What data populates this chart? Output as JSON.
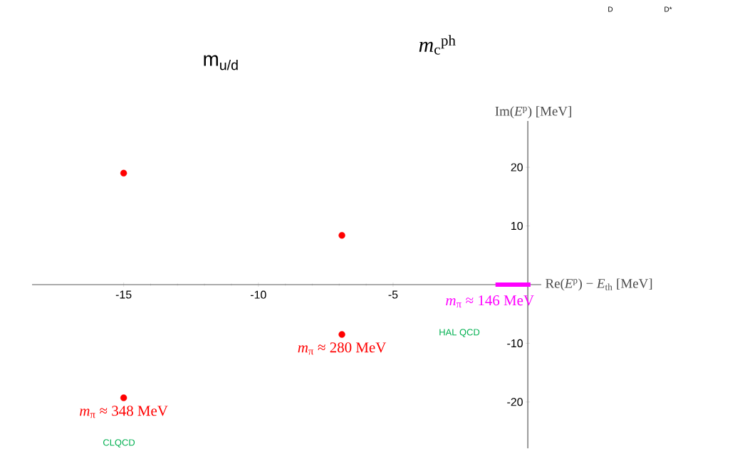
{
  "chart_data": {
    "type": "scatter",
    "xlabel": "Re(*E*$^{p}$) − *E*$_{th}$ [MeV]",
    "ylabel": "Im(*E*$^{p}$) [MeV]",
    "xlim": [
      -18.4,
      0.5
    ],
    "ylim": [
      -27.9,
      27.9
    ],
    "xticks": [
      -15,
      -10,
      -5
    ],
    "yticks": [
      -20,
      -10,
      10,
      20
    ],
    "marker": "circle",
    "series": [
      {
        "color": "#ff0000",
        "x": [
          -15,
          -15,
          -6.9,
          -6.9
        ],
        "values": [
          19,
          -19.3,
          8.4,
          -8.5
        ]
      },
      {
        "type": "line",
        "color": "#ff00ff",
        "marker": "none",
        "x": [
          -1.2,
          0.1
        ],
        "values": [
          0,
          0
        ]
      }
    ],
    "annotations": [
      {
        "text": "*m*$_{π}$ ≈ 348 MeV",
        "x": -15,
        "y": -19.3
      },
      {
        "text": "*m*$_{π}$ ≈ 280 MeV",
        "x": -6.9,
        "y": -8.5
      },
      {
        "text": "*m*$_{π}$ ≈ 146 MeV",
        "x": -1.2,
        "y": 0
      },
      "CLQCD",
      "HAL QCD",
      "m$_{u/d}$",
      "*m*$_{c}$$^{ph}$",
      "D",
      "D*"
    ]
  }
}
